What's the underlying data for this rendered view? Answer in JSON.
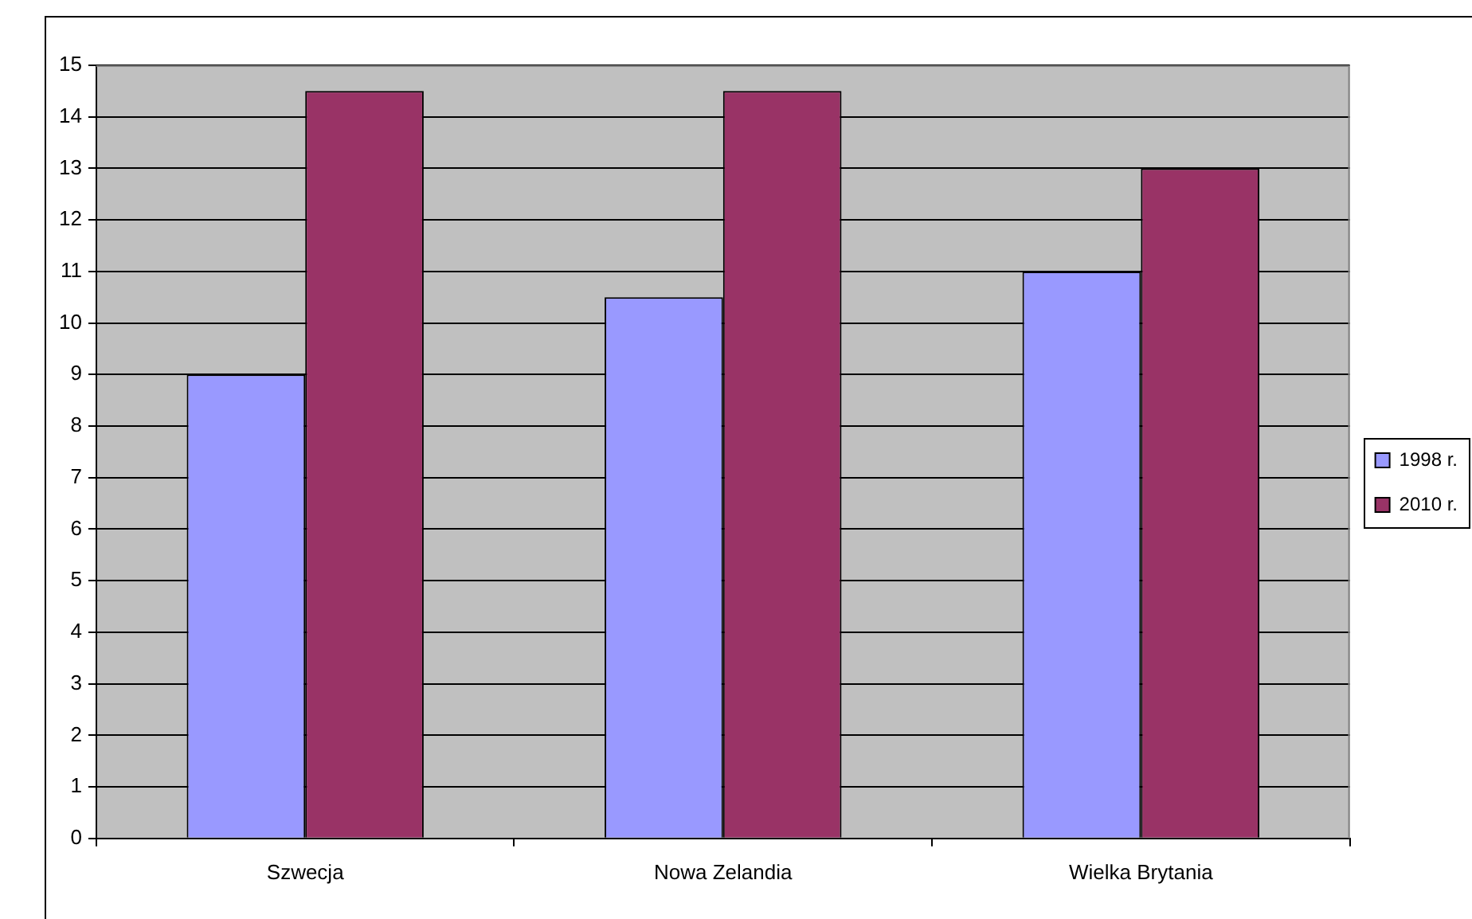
{
  "chart_data": {
    "type": "bar",
    "categories": [
      "Szwecja",
      "Nowa Zelandia",
      "Wielka Brytania"
    ],
    "series": [
      {
        "name": "1998 r.",
        "color": "#9999ff",
        "values": [
          9,
          10.5,
          11
        ]
      },
      {
        "name": "2010 r.",
        "color": "#993366",
        "values": [
          14.5,
          14.5,
          13
        ]
      }
    ],
    "ylim": [
      0,
      15
    ],
    "yticks": [
      0,
      1,
      2,
      3,
      4,
      5,
      6,
      7,
      8,
      9,
      10,
      11,
      12,
      13,
      14,
      15
    ],
    "grid": "y",
    "legend": "right"
  }
}
